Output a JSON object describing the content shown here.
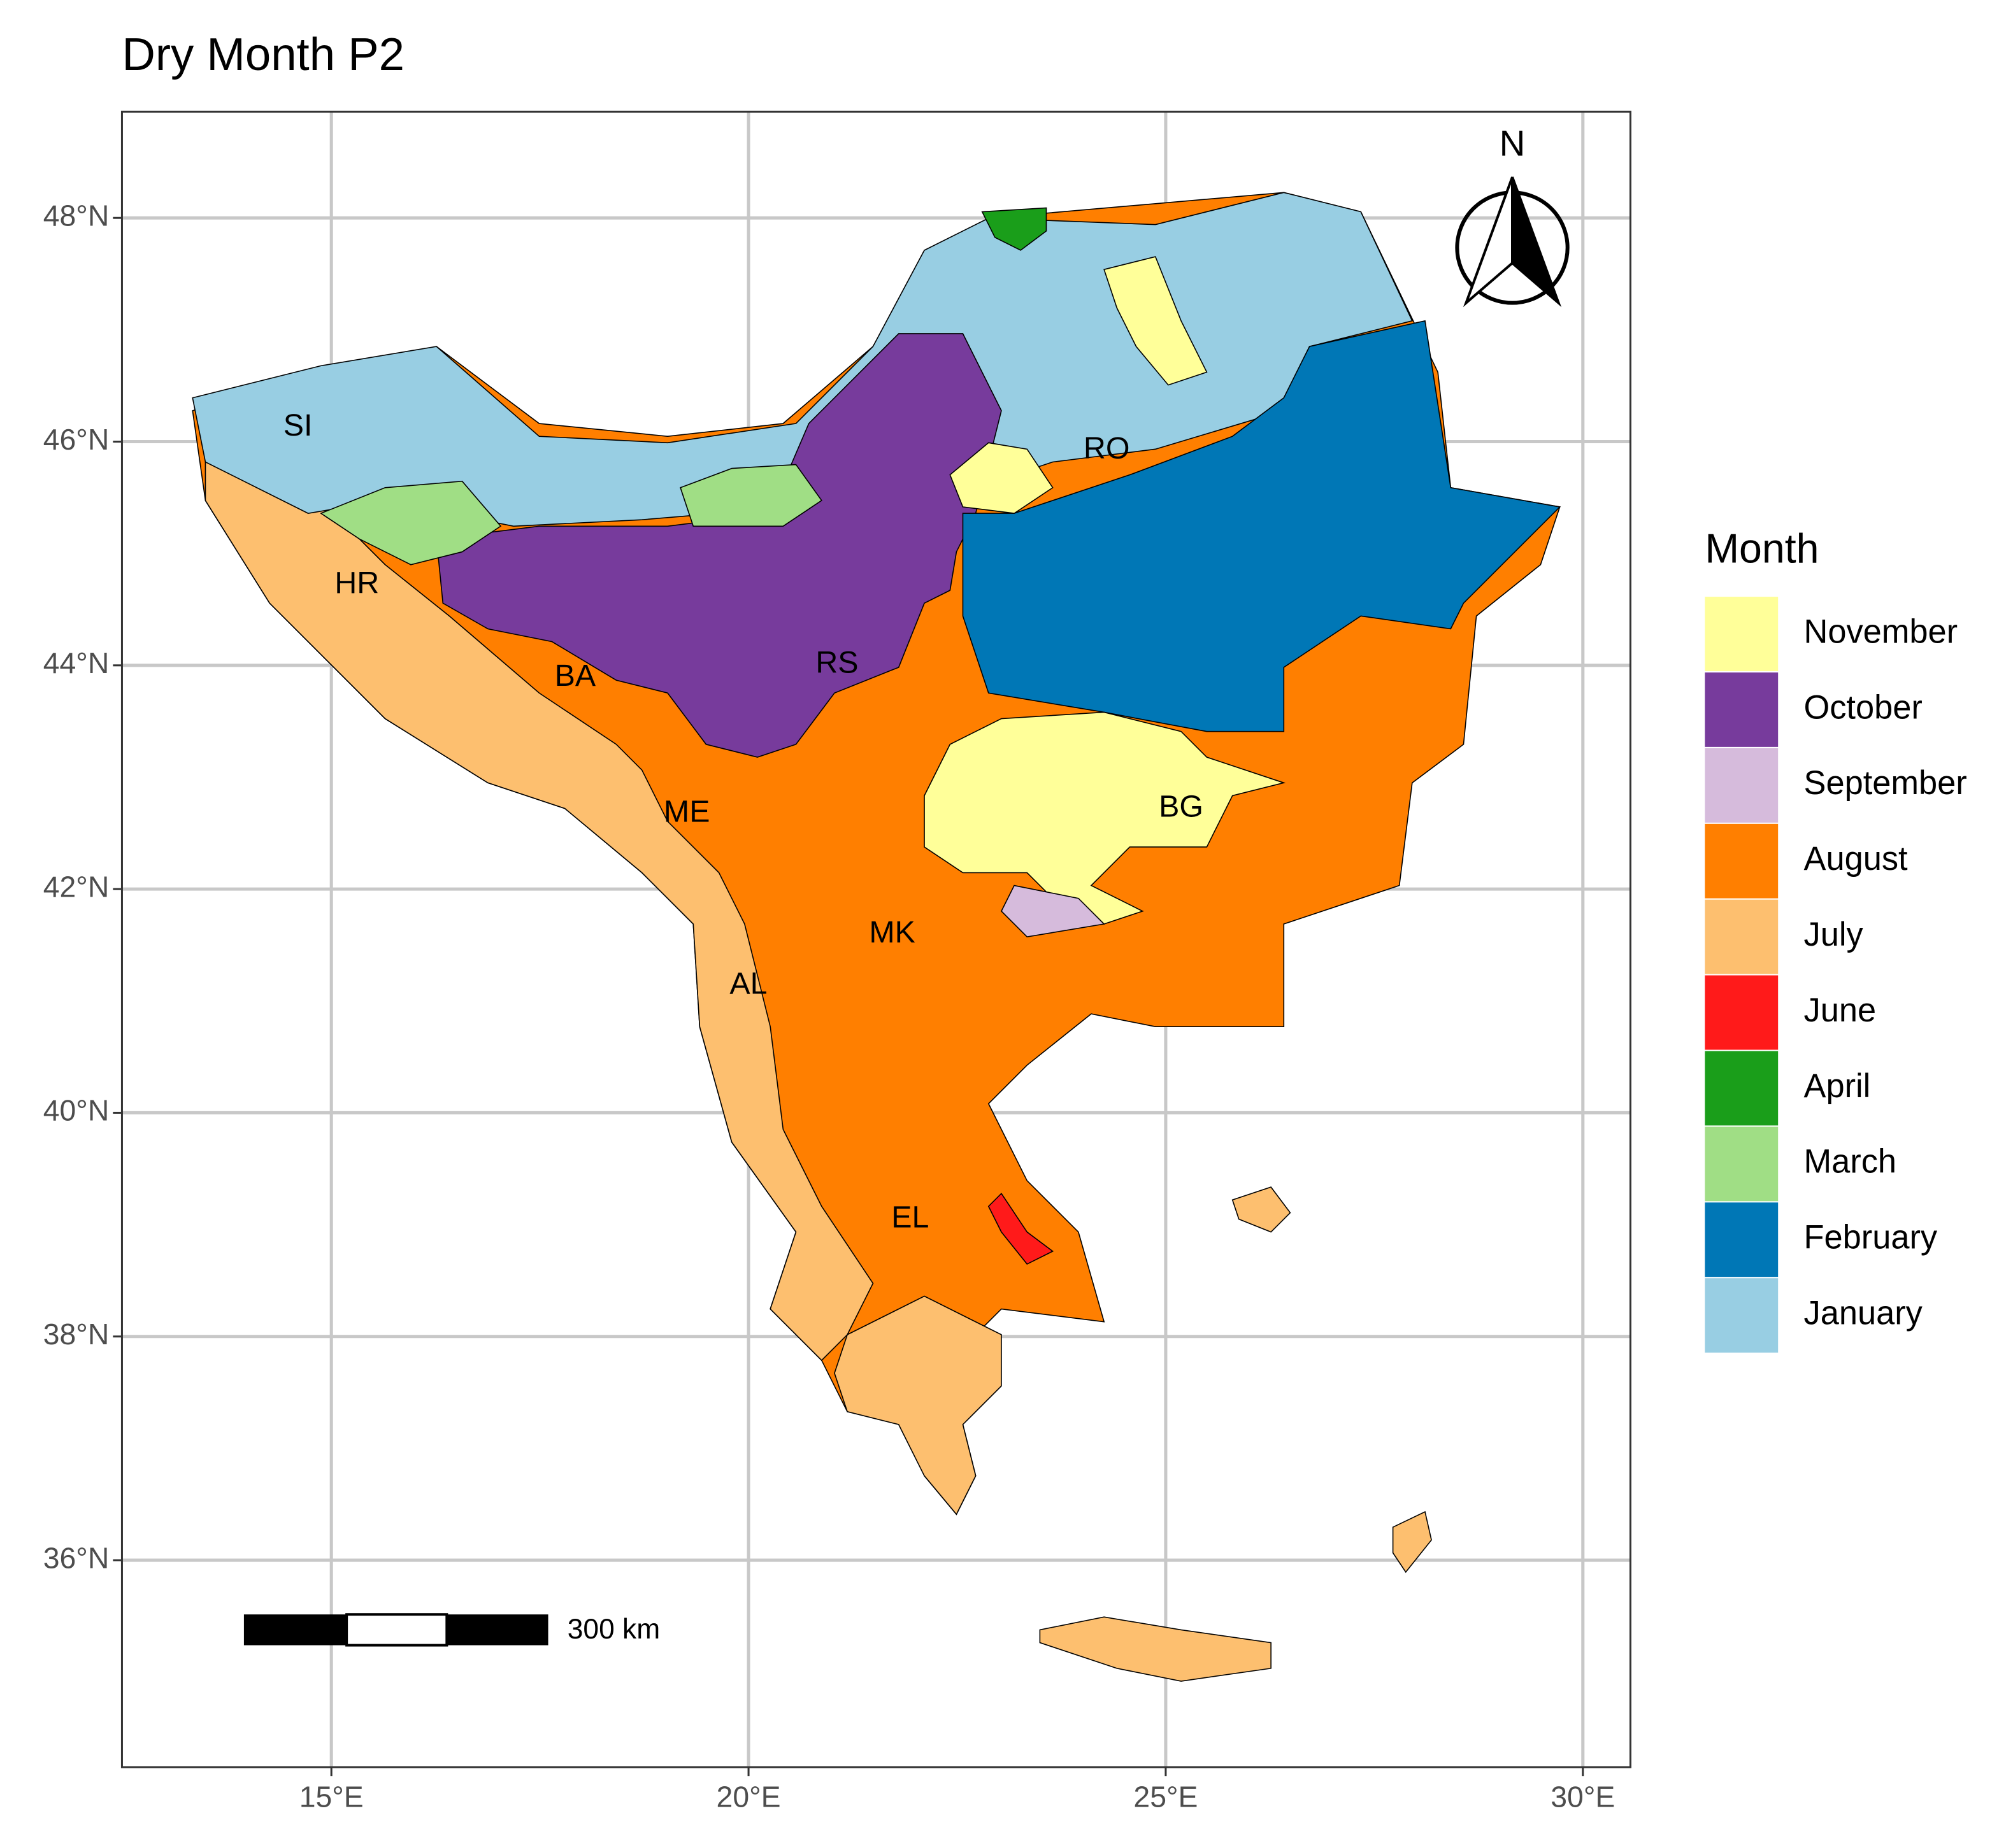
{
  "chart_data": {
    "type": "map",
    "title": "Dry Month P2",
    "xlim": [
      12.49,
      30.57
    ],
    "ylim": [
      34.15,
      48.95
    ],
    "xticks": [
      {
        "value": 15,
        "label": "15°E"
      },
      {
        "value": 20,
        "label": "20°E"
      },
      {
        "value": 25,
        "label": "25°E"
      },
      {
        "value": 30,
        "label": "30°E"
      }
    ],
    "yticks": [
      {
        "value": 36,
        "label": "36°N"
      },
      {
        "value": 38,
        "label": "38°N"
      },
      {
        "value": 40,
        "label": "40°N"
      },
      {
        "value": 42,
        "label": "42°N"
      },
      {
        "value": 44,
        "label": "44°N"
      },
      {
        "value": 46,
        "label": "46°N"
      },
      {
        "value": 48,
        "label": "48°N"
      }
    ],
    "grid": true,
    "legend": {
      "title": "Month",
      "position": "right",
      "entries": [
        {
          "name": "November",
          "color": "#ffff99"
        },
        {
          "name": "October",
          "color": "#773b9c"
        },
        {
          "name": "September",
          "color": "#d6bbdc"
        },
        {
          "name": "August",
          "color": "#ff7f00"
        },
        {
          "name": "July",
          "color": "#fdbf6f"
        },
        {
          "name": "June",
          "color": "#ff1a1a"
        },
        {
          "name": "April",
          "color": "#1a9e1a"
        },
        {
          "name": "March",
          "color": "#a0de85"
        },
        {
          "name": "February",
          "color": "#0077b6"
        },
        {
          "name": "January",
          "color": "#98cee3"
        }
      ]
    },
    "annotations": [
      "SI",
      "HR",
      "BA",
      "RS",
      "ME",
      "RO",
      "BG",
      "MK",
      "AL",
      "EL"
    ],
    "scale_bar": "300 km",
    "north_arrow": "N"
  }
}
